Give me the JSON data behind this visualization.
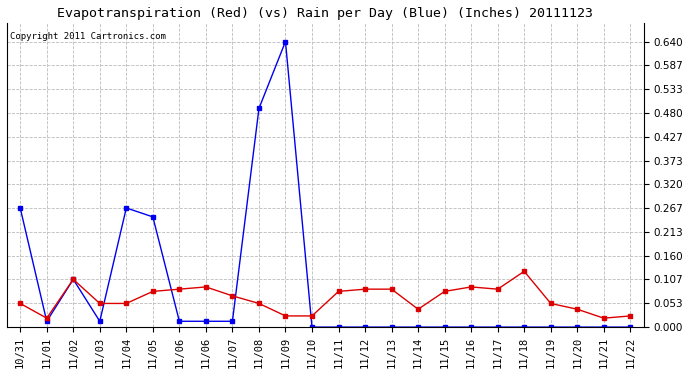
{
  "title": "Evapotranspiration (Red) (vs) Rain per Day (Blue) (Inches) 20111123",
  "copyright": "Copyright 2011 Cartronics.com",
  "x_labels": [
    "10/31",
    "11/01",
    "11/02",
    "11/03",
    "11/04",
    "11/05",
    "11/06",
    "11/06",
    "11/07",
    "11/08",
    "11/09",
    "11/10",
    "11/11",
    "11/12",
    "11/13",
    "11/14",
    "11/15",
    "11/16",
    "11/17",
    "11/18",
    "11/19",
    "11/20",
    "11/21",
    "11/22"
  ],
  "blue_data": [
    0.267,
    0.013,
    0.107,
    0.013,
    0.267,
    0.247,
    0.013,
    0.013,
    0.013,
    0.49,
    0.64,
    0.0,
    0.0,
    0.0,
    0.0,
    0.0,
    0.0,
    0.0,
    0.0,
    0.0,
    0.0,
    0.0,
    0.0,
    0.0
  ],
  "red_data": [
    0.053,
    0.02,
    0.107,
    0.053,
    0.053,
    0.08,
    0.085,
    0.09,
    0.07,
    0.053,
    0.025,
    0.025,
    0.08,
    0.085,
    0.085,
    0.04,
    0.08,
    0.09,
    0.085,
    0.125,
    0.053,
    0.04,
    0.02,
    0.025
  ],
  "ylim": [
    0.0,
    0.6827
  ],
  "yticks": [
    0.0,
    0.053,
    0.107,
    0.16,
    0.213,
    0.267,
    0.32,
    0.373,
    0.427,
    0.48,
    0.533,
    0.587,
    0.64
  ],
  "background_color": "#ffffff",
  "grid_color": "#bbbbbb",
  "blue_color": "#0000ee",
  "red_color": "#dd0000",
  "title_fontsize": 9.5,
  "copyright_fontsize": 6.5,
  "tick_fontsize": 7.5
}
